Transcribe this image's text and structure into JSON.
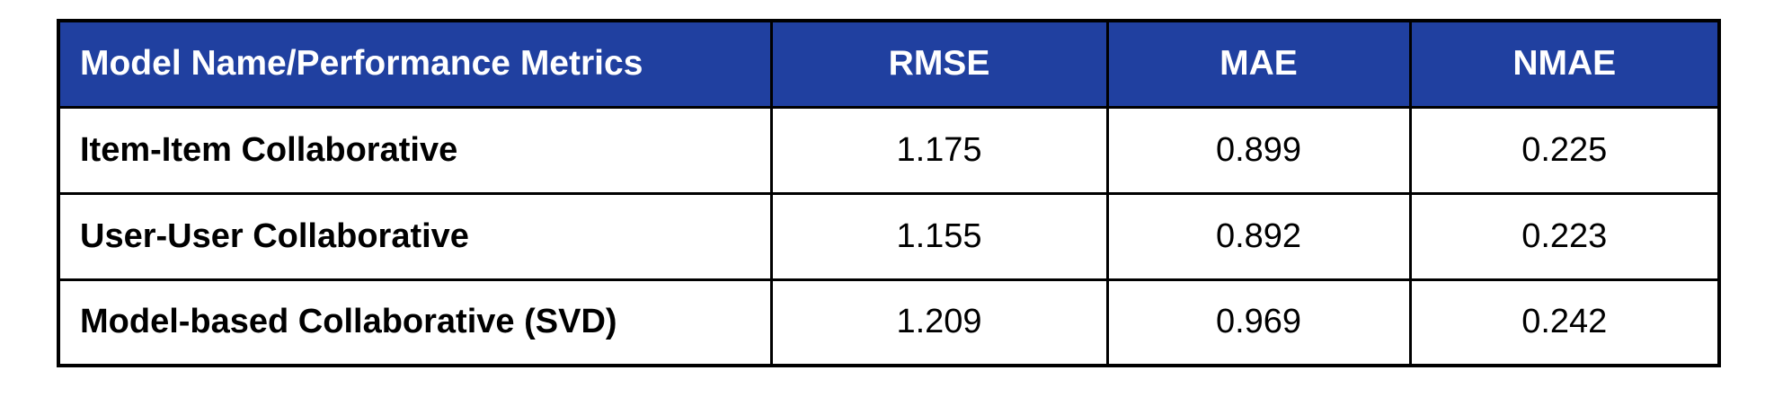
{
  "table": {
    "headers": [
      "Model Name/Performance Metrics",
      "RMSE",
      "MAE",
      "NMAE"
    ],
    "rows": [
      {
        "model": "Item-Item Collaborative",
        "rmse": "1.175",
        "mae": "0.899",
        "nmae": "0.225"
      },
      {
        "model": "User-User Collaborative",
        "rmse": "1.155",
        "mae": "0.892",
        "nmae": "0.223"
      },
      {
        "model": "Model-based Collaborative (SVD)",
        "rmse": "1.209",
        "mae": "0.969",
        "nmae": "0.242"
      }
    ]
  },
  "colors": {
    "header_background": "#2040a0",
    "header_text": "#ffffff",
    "border": "#000000"
  }
}
